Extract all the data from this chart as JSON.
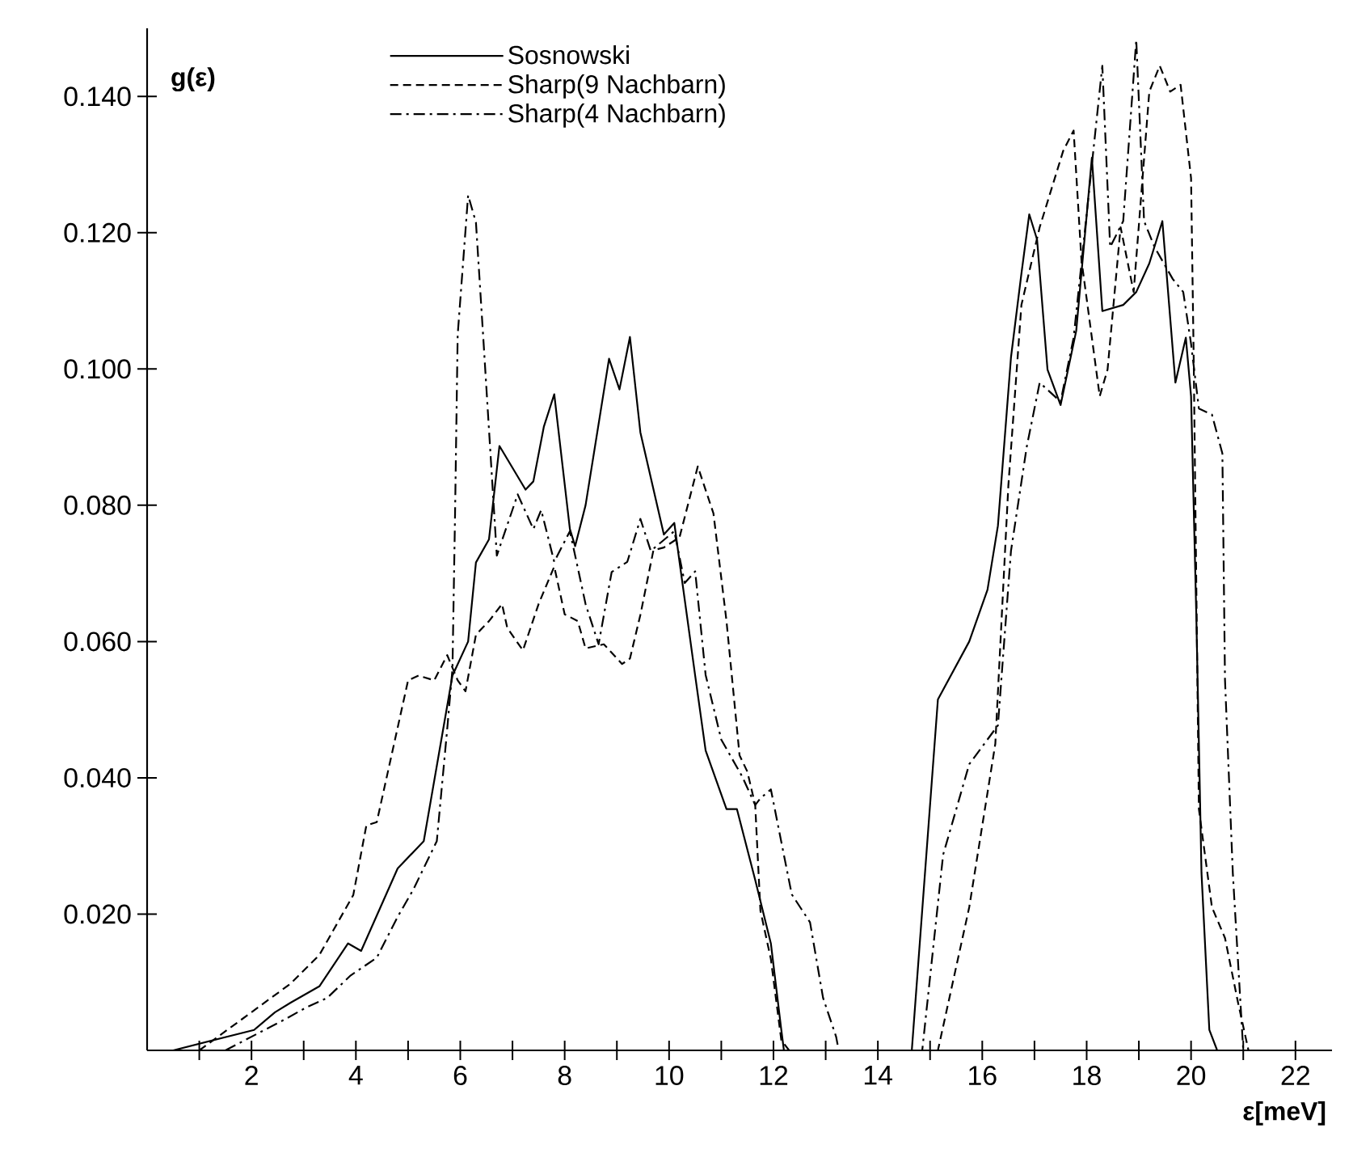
{
  "chart_data": {
    "type": "line",
    "xlabel": "ε[meV]",
    "ylabel": "g(ε)",
    "legend": "top",
    "xlim": [
      0,
      22.7
    ],
    "ylim": [
      0,
      0.15
    ],
    "xticks": [
      {
        "value": 1,
        "label": null
      },
      2,
      {
        "value": 3,
        "label": null
      },
      4,
      {
        "value": 5,
        "label": null
      },
      6,
      {
        "value": 7,
        "label": null
      },
      8,
      {
        "value": 9,
        "label": null
      },
      10,
      {
        "value": 11,
        "label": null
      },
      12,
      {
        "value": 13,
        "label": null
      },
      14,
      {
        "value": 15,
        "label": null
      },
      16,
      {
        "value": 17,
        "label": null
      },
      18,
      {
        "value": 19,
        "label": null
      },
      20,
      {
        "value": 21,
        "label": null
      },
      22
    ],
    "yticks": [
      {
        "value": 0.02,
        "label": "0.020"
      },
      {
        "value": 0.04,
        "label": "0.040"
      },
      {
        "value": 0.06,
        "label": "0.060"
      },
      {
        "value": 0.08,
        "label": "0.080"
      },
      {
        "value": 0.1,
        "label": "0.100"
      },
      {
        "value": 0.12,
        "label": "0.120"
      },
      {
        "value": 0.14,
        "label": "0.140"
      }
    ],
    "series": [
      {
        "name": "Sosnowski",
        "color": "#000000",
        "line_style": "solid",
        "x": [
          0.5,
          2.05,
          2.45,
          2.75,
          3.3,
          3.85,
          4.1,
          4.8,
          5.3,
          5.85,
          6.15,
          6.3,
          6.55,
          6.75,
          7.25,
          7.4,
          7.6,
          7.8,
          8.1,
          8.2,
          8.4,
          8.85,
          9.05,
          9.25,
          9.45,
          9.9,
          10.1,
          10.2,
          10.5,
          10.7,
          11.1,
          11.3,
          11.65,
          11.95,
          12.15,
          12.2,
          14.65,
          15.15,
          15.75,
          16.1,
          16.3,
          16.55,
          16.75,
          16.9,
          17.05,
          17.25,
          17.5,
          17.8,
          18.1,
          18.3,
          18.7,
          18.95,
          19.2,
          19.45,
          19.7,
          19.9,
          20.0,
          20.1,
          20.2,
          20.35,
          20.5
        ],
        "values": [
          0,
          0.003,
          0.0056,
          0.007,
          0.0094,
          0.0157,
          0.0146,
          0.0267,
          0.0307,
          0.055,
          0.06,
          0.0716,
          0.075,
          0.0887,
          0.0823,
          0.0835,
          0.0915,
          0.0963,
          0.0765,
          0.074,
          0.08,
          0.1015,
          0.097,
          0.1047,
          0.0907,
          0.0757,
          0.0774,
          0.0717,
          0.055,
          0.044,
          0.0354,
          0.0354,
          0.025,
          0.0157,
          0.003,
          0,
          0,
          0.0515,
          0.06,
          0.0676,
          0.077,
          0.1017,
          0.114,
          0.1227,
          0.119,
          0.0999,
          0.0947,
          0.1056,
          0.131,
          0.1085,
          0.1094,
          0.1113,
          0.1155,
          0.1217,
          0.098,
          0.1046,
          0.096,
          0.064,
          0.026,
          0.003,
          0
        ]
      },
      {
        "name": "Sharp(9 Nachbarn)",
        "color": "#000000",
        "line_style": "dashed",
        "x": [
          1.0,
          2.75,
          3.3,
          3.95,
          4.2,
          4.4,
          5.0,
          5.2,
          5.5,
          5.75,
          5.95,
          6.1,
          6.3,
          6.55,
          6.8,
          6.9,
          7.2,
          7.5,
          7.8,
          8.0,
          8.25,
          8.4,
          8.75,
          9.1,
          9.25,
          9.45,
          9.7,
          9.9,
          10.2,
          10.55,
          10.85,
          11.1,
          11.35,
          11.5,
          11.65,
          11.75,
          11.95,
          12.15,
          12.3,
          15.15,
          15.75,
          16.25,
          16.5,
          16.75,
          17.1,
          17.55,
          17.75,
          17.9,
          18.25,
          18.4,
          18.65,
          18.9,
          19.2,
          19.4,
          19.6,
          19.8,
          20.0,
          20.05,
          20.15,
          20.4,
          20.65,
          20.9,
          21.1
        ],
        "values": [
          0,
          0.0098,
          0.014,
          0.0228,
          0.033,
          0.0335,
          0.0543,
          0.055,
          0.0543,
          0.058,
          0.0543,
          0.0527,
          0.061,
          0.063,
          0.0655,
          0.062,
          0.0587,
          0.0655,
          0.071,
          0.064,
          0.063,
          0.059,
          0.0596,
          0.0567,
          0.0575,
          0.0639,
          0.0734,
          0.0738,
          0.0753,
          0.0857,
          0.0788,
          0.063,
          0.0433,
          0.0409,
          0.036,
          0.0205,
          0.0134,
          0.0015,
          0,
          0,
          0.021,
          0.045,
          0.0829,
          0.1094,
          0.1208,
          0.132,
          0.135,
          0.116,
          0.096,
          0.0999,
          0.1208,
          0.1113,
          0.1407,
          0.1445,
          0.1407,
          0.1417,
          0.128,
          0.1018,
          0.0354,
          0.021,
          0.0165,
          0.007,
          0
        ]
      },
      {
        "name": "Sharp(4 Nachbarn)",
        "color": "#000000",
        "line_style": "dashdot",
        "x": [
          1.5,
          2.65,
          3.05,
          3.45,
          3.9,
          4.4,
          4.8,
          5.1,
          5.55,
          5.75,
          5.85,
          5.9,
          5.95,
          6.15,
          6.3,
          6.45,
          6.7,
          7.1,
          7.4,
          7.55,
          7.8,
          8.1,
          8.4,
          8.65,
          8.9,
          9.2,
          9.45,
          9.65,
          10.1,
          10.3,
          10.5,
          10.7,
          11.0,
          11.4,
          11.65,
          11.75,
          11.95,
          12.35,
          12.7,
          12.95,
          13.2,
          13.25,
          14.85,
          15.25,
          15.75,
          16.3,
          16.55,
          16.85,
          17.1,
          17.5,
          17.75,
          18.1,
          18.3,
          18.45,
          18.7,
          18.95,
          19.1,
          19.3,
          19.65,
          19.85,
          20.0,
          20.15,
          20.4,
          20.6,
          20.65,
          20.8,
          21.0
        ],
        "values": [
          0,
          0.0046,
          0.0063,
          0.0077,
          0.011,
          0.0136,
          0.0196,
          0.0236,
          0.0307,
          0.0472,
          0.056,
          0.0788,
          0.105,
          0.1255,
          0.1215,
          0.1034,
          0.0726,
          0.0816,
          0.0765,
          0.0793,
          0.0717,
          0.0762,
          0.0655,
          0.0596,
          0.0702,
          0.0717,
          0.078,
          0.0733,
          0.0762,
          0.0686,
          0.0703,
          0.0551,
          0.0456,
          0.0402,
          0.036,
          0.037,
          0.0383,
          0.0229,
          0.0188,
          0.0077,
          0.002,
          0,
          0,
          0.0287,
          0.042,
          0.0477,
          0.0733,
          0.0885,
          0.098,
          0.0952,
          0.1046,
          0.13,
          0.1445,
          0.1179,
          0.1217,
          0.1483,
          0.1217,
          0.1179,
          0.1132,
          0.1113,
          0.1037,
          0.0942,
          0.0933,
          0.0876,
          0.0544,
          0.026,
          0
        ]
      }
    ]
  }
}
